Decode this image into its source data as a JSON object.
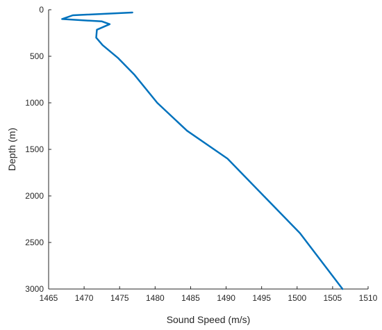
{
  "chart_data": {
    "type": "line",
    "title": "",
    "xlabel": "Sound Speed (m/s)",
    "ylabel": "Depth (m)",
    "xlim": [
      1465,
      1510
    ],
    "ylim": [
      0,
      3000
    ],
    "y_reversed": true,
    "grid": false,
    "legend": "none",
    "x_ticks": [
      1465,
      1470,
      1475,
      1480,
      1485,
      1490,
      1495,
      1500,
      1505,
      1510
    ],
    "y_ticks": [
      0,
      500,
      1000,
      1500,
      2000,
      2500,
      3000
    ],
    "colors": {
      "line": "#0072BD",
      "axis": "#262626"
    },
    "series": [
      {
        "x": [
          1476.8,
          1468.4,
          1466.9,
          1472.5,
          1473.6,
          1471.8,
          1471.7,
          1472.6,
          1474.8,
          1477.1,
          1480.3,
          1484.5,
          1490.2,
          1495.3,
          1500.4,
          1506.4
        ],
        "y": [
          30,
          60,
          100,
          125,
          155,
          215,
          300,
          380,
          520,
          700,
          1000,
          1300,
          1600,
          2000,
          2400,
          3000
        ]
      }
    ]
  }
}
